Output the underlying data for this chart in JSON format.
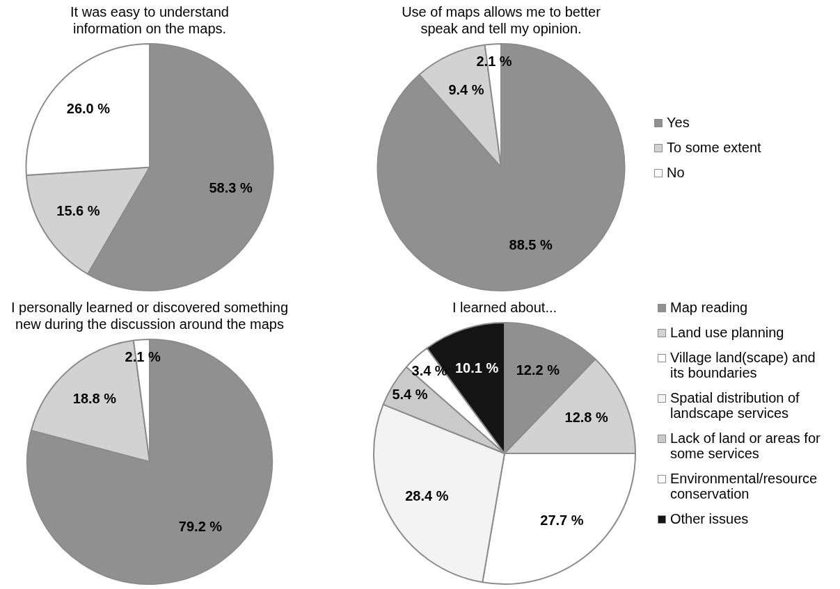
{
  "chart_data": [
    {
      "type": "pie",
      "title": [
        "It was easy to understand",
        "information on the maps."
      ],
      "categories": [
        null,
        null,
        null
      ],
      "values": [
        58.3,
        15.6,
        26.0
      ],
      "value_labels": [
        "58.3 %",
        "15.6 %",
        "26.0 %"
      ],
      "colors": [
        "#8f908f",
        "#d2d2d2",
        "#ffffff"
      ],
      "legend": false
    },
    {
      "type": "pie",
      "title": [
        "Use of maps allows me to better",
        "speak and tell my opinion."
      ],
      "categories": [
        "Yes",
        "To some extent",
        "No"
      ],
      "values": [
        88.5,
        9.4,
        2.1
      ],
      "value_labels": [
        "88.5 %",
        "9.4 %",
        "2.1 %"
      ],
      "colors": [
        "#8f908f",
        "#d2d2d2",
        "#ffffff"
      ],
      "legend": "right"
    },
    {
      "type": "pie",
      "title": [
        "I personally learned or discovered something",
        "new during the discussion around the maps"
      ],
      "categories": [
        null,
        null,
        null
      ],
      "values": [
        79.2,
        18.8,
        2.1
      ],
      "value_labels": [
        "79.2 %",
        "18.8 %",
        "2.1 %"
      ],
      "colors": [
        "#8f908f",
        "#d2d2d2",
        "#ffffff"
      ],
      "legend": false
    },
    {
      "type": "pie",
      "title": "I learned about...",
      "categories": [
        "Map reading",
        "Land use planning",
        "Village land(scape) and its boundaries",
        "Spatial distribution of landscape services",
        "Lack of land or areas for some services",
        "Environmental/resource conservation",
        "Other issues"
      ],
      "values": [
        12.2,
        12.8,
        27.7,
        28.4,
        5.4,
        3.4,
        10.1
      ],
      "value_labels": [
        "12.2 %",
        "12.8 %",
        "27.7 %",
        "28.4 %",
        "5.4 %",
        "3.4 %",
        "10.1 %"
      ],
      "colors": [
        "#8f908f",
        "#d2d2d2",
        "#ffffff",
        "#f3f3f3",
        "#cacaca",
        "#ffffff",
        "#141414"
      ],
      "legend": "right"
    }
  ]
}
